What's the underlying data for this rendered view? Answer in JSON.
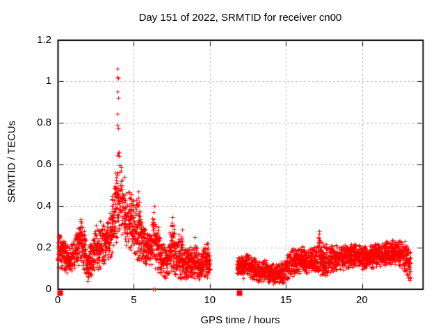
{
  "window": {
    "background": "#ffffff"
  },
  "chart_data": {
    "type": "scatter",
    "title": "Day 151 of 2022, SRMTID for receiver cn00",
    "xlabel": "GPS time / hours",
    "ylabel": "SRMTID / TECUs",
    "xlim": [
      0,
      24
    ],
    "ylim": [
      0,
      1.2
    ],
    "xticks": [
      0,
      5,
      10,
      15,
      20
    ],
    "xtick_labels": [
      "0",
      "5",
      "10",
      "15",
      "20"
    ],
    "yticks": [
      0,
      0.2,
      0.4,
      0.6,
      0.8,
      1,
      1.2
    ],
    "ytick_labels": [
      "0",
      "0.2",
      "0.4",
      "0.6",
      "0.8",
      "1",
      "1.2"
    ],
    "grid": true,
    "legend": false,
    "colors": {
      "marker": "#ff0000",
      "grid": "#9c9c9c",
      "axis": "#000000",
      "text": "#000000"
    },
    "marker_style": "plus",
    "data_gap_hours": [
      10.0,
      11.78
    ],
    "series": [
      {
        "name": "SRMTID scatter (plus markers)",
        "marker": "plus",
        "color": "#ff0000",
        "segments": [
          [
            [
              0.0,
              0.1,
              0.26
            ],
            [
              0.35,
              0.09,
              0.24
            ],
            [
              0.7,
              0.05,
              0.2
            ],
            [
              1.0,
              0.08,
              0.23
            ],
            [
              1.25,
              0.1,
              0.28
            ],
            [
              1.5,
              0.12,
              0.35
            ],
            [
              1.8,
              0.06,
              0.26
            ],
            [
              2.0,
              0.03,
              0.16
            ],
            [
              2.45,
              0.09,
              0.32
            ],
            [
              2.8,
              0.1,
              0.33
            ],
            [
              3.1,
              0.12,
              0.3
            ],
            [
              3.45,
              0.14,
              0.38
            ],
            [
              3.7,
              0.18,
              0.5
            ],
            [
              3.9,
              0.22,
              0.62
            ],
            [
              4.1,
              0.24,
              0.63
            ],
            [
              4.35,
              0.22,
              0.55
            ],
            [
              4.6,
              0.18,
              0.47
            ],
            [
              5.0,
              0.16,
              0.43
            ],
            [
              5.3,
              0.13,
              0.45
            ],
            [
              5.55,
              0.11,
              0.33
            ],
            [
              5.85,
              0.09,
              0.28
            ],
            [
              6.1,
              0.09,
              0.3
            ],
            [
              6.35,
              0.1,
              0.4
            ],
            [
              6.6,
              0.08,
              0.3
            ],
            [
              6.9,
              0.06,
              0.23
            ],
            [
              7.2,
              0.04,
              0.19
            ],
            [
              7.5,
              0.07,
              0.33
            ],
            [
              7.75,
              0.05,
              0.26
            ],
            [
              8.1,
              0.05,
              0.27
            ],
            [
              8.45,
              0.04,
              0.19
            ],
            [
              8.75,
              0.05,
              0.2
            ],
            [
              9.0,
              0.05,
              0.24
            ],
            [
              9.3,
              0.04,
              0.17
            ],
            [
              9.6,
              0.05,
              0.22
            ],
            [
              9.85,
              0.05,
              0.23
            ],
            [
              10.0,
              0.05,
              0.18
            ]
          ],
          [
            [
              11.78,
              0.06,
              0.15
            ],
            [
              12.1,
              0.05,
              0.16
            ],
            [
              12.5,
              0.06,
              0.17
            ],
            [
              12.9,
              0.04,
              0.15
            ],
            [
              13.3,
              0.03,
              0.14
            ],
            [
              13.7,
              0.04,
              0.14
            ],
            [
              14.1,
              0.02,
              0.12
            ],
            [
              14.5,
              0.02,
              0.12
            ],
            [
              14.9,
              0.03,
              0.14
            ],
            [
              15.3,
              0.05,
              0.19
            ],
            [
              15.7,
              0.06,
              0.2
            ],
            [
              16.1,
              0.07,
              0.21
            ],
            [
              16.5,
              0.07,
              0.19
            ],
            [
              16.9,
              0.07,
              0.2
            ],
            [
              17.15,
              0.08,
              0.26
            ],
            [
              17.35,
              0.06,
              0.21
            ],
            [
              17.7,
              0.06,
              0.23
            ],
            [
              18.1,
              0.08,
              0.2
            ],
            [
              18.5,
              0.09,
              0.21
            ],
            [
              18.9,
              0.09,
              0.22
            ],
            [
              19.3,
              0.1,
              0.23
            ],
            [
              19.7,
              0.1,
              0.21
            ],
            [
              20.1,
              0.09,
              0.2
            ],
            [
              20.5,
              0.1,
              0.21
            ],
            [
              20.9,
              0.1,
              0.22
            ],
            [
              21.3,
              0.11,
              0.23
            ],
            [
              21.7,
              0.11,
              0.24
            ],
            [
              22.1,
              0.11,
              0.23
            ],
            [
              22.5,
              0.1,
              0.24
            ],
            [
              22.9,
              0.07,
              0.23
            ],
            [
              23.1,
              0.04,
              0.2
            ],
            [
              23.2,
              0.03,
              0.18
            ]
          ]
        ],
        "extra_points": [
          [
            3.95,
            1.06
          ],
          [
            3.94,
            1.02
          ],
          [
            3.97,
            1.015
          ],
          [
            3.95,
            0.95
          ],
          [
            3.96,
            0.92
          ],
          [
            3.95,
            0.845
          ],
          [
            3.94,
            0.79
          ],
          [
            3.97,
            0.775
          ],
          [
            4.0,
            0.66
          ],
          [
            3.98,
            0.655
          ],
          [
            4.02,
            0.64
          ],
          [
            3.93,
            0.645
          ],
          [
            5.28,
            0.47
          ],
          [
            5.3,
            0.44
          ],
          [
            6.35,
            0.4
          ],
          [
            6.33,
            0.37
          ],
          [
            7.52,
            0.345
          ],
          [
            7.5,
            0.32
          ],
          [
            8.2,
            0.285
          ],
          [
            9.02,
            0.25
          ],
          [
            17.18,
            0.28
          ],
          [
            17.2,
            0.265
          ],
          [
            17.16,
            0.25
          ],
          [
            17.22,
            0.235
          ],
          [
            17.19,
            0.22
          ],
          [
            6.25,
            0.0
          ],
          [
            6.38,
            0.0
          ]
        ]
      },
      {
        "name": "flag markers (filled squares at zero)",
        "marker": "filled-square",
        "color": "#ff0000",
        "points": [
          [
            0.14,
            0.0
          ],
          [
            11.95,
            0.0
          ]
        ]
      }
    ],
    "generation": {
      "seed": 42,
      "epoch_step_hours": 0.012,
      "streak_probability": 0.04
    }
  }
}
